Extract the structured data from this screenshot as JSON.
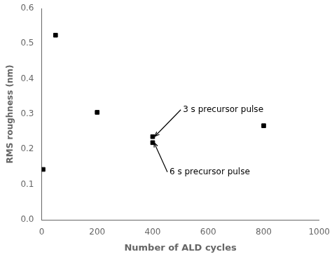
{
  "chart_data": {
    "type": "scatter",
    "x_label": "Number of ALD cycles",
    "y_label": "RMS roughness (nm)",
    "series": [
      {
        "x": [
          50,
          200,
          400,
          800
        ],
        "values": [
          0.524,
          0.305,
          0.236,
          0.267
        ],
        "color": "#000000",
        "marker": "square"
      },
      {
        "x": [
          5,
          400
        ],
        "values": [
          0.143,
          0.219
        ],
        "color": "#000000",
        "marker": "square"
      }
    ],
    "annotations": [
      {
        "text": "3 s precursor pulse",
        "x": 408,
        "y": 0.237
      },
      {
        "text": "6 s precursor pulse",
        "x": 405,
        "y": 0.219
      }
    ],
    "xlim": [
      0,
      1000
    ],
    "ylim": [
      0.0,
      0.6
    ],
    "xticks": [
      0,
      200,
      400,
      600,
      800,
      1000
    ],
    "yticks": [
      {
        "value": 0.0,
        "label": "0.0"
      },
      0.1,
      0.2,
      0.3,
      0.4,
      0.5,
      0.6
    ],
    "grid": false
  }
}
